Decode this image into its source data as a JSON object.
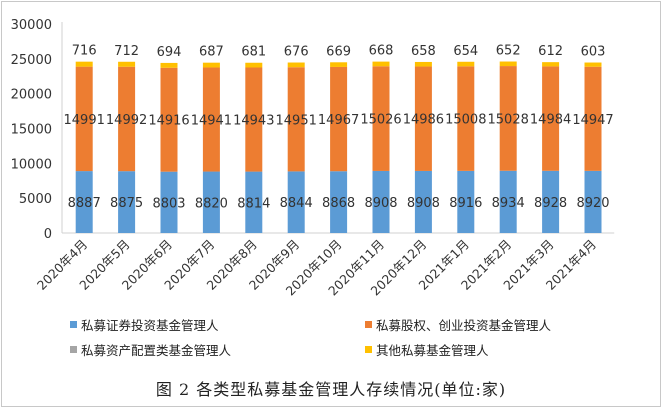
{
  "chart_data": {
    "type": "bar",
    "stacked": true,
    "categories": [
      "2020年4月",
      "2020年5月",
      "2020年6月",
      "2020年7月",
      "2020年8月",
      "2020年9月",
      "2020年10月",
      "2020年11月",
      "2020年12月",
      "2021年1月",
      "2021年2月",
      "2021年3月",
      "2021年4月"
    ],
    "series": [
      {
        "name": "私募证券投资基金管理人",
        "color": "#5b9bd5",
        "values": [
          8887,
          8875,
          8803,
          8820,
          8814,
          8844,
          8868,
          8908,
          8908,
          8916,
          8934,
          8928,
          8920
        ]
      },
      {
        "name": "私募股权、创业投资基金管理人",
        "color": "#ed7d31",
        "values": [
          14991,
          14992,
          14916,
          14941,
          14943,
          14951,
          14967,
          15026,
          14986,
          15008,
          15028,
          14984,
          14947
        ]
      },
      {
        "name": "私募资产配置类基金管理人",
        "color": "#a5a5a5",
        "values": [
          null,
          null,
          null,
          null,
          null,
          null,
          null,
          null,
          null,
          null,
          null,
          null,
          null
        ]
      },
      {
        "name": "其他私募基金管理人",
        "color": "#ffc000",
        "values": [
          716,
          712,
          694,
          687,
          681,
          676,
          669,
          668,
          658,
          654,
          652,
          612,
          603
        ]
      }
    ],
    "ylim": [
      0,
      30000
    ],
    "yticks": [
      0,
      5000,
      10000,
      15000,
      20000,
      25000,
      30000
    ],
    "grid": false,
    "legend_position": "bottom",
    "title": "图 2 各类型私募基金管理人存续情况(单位:家)"
  }
}
